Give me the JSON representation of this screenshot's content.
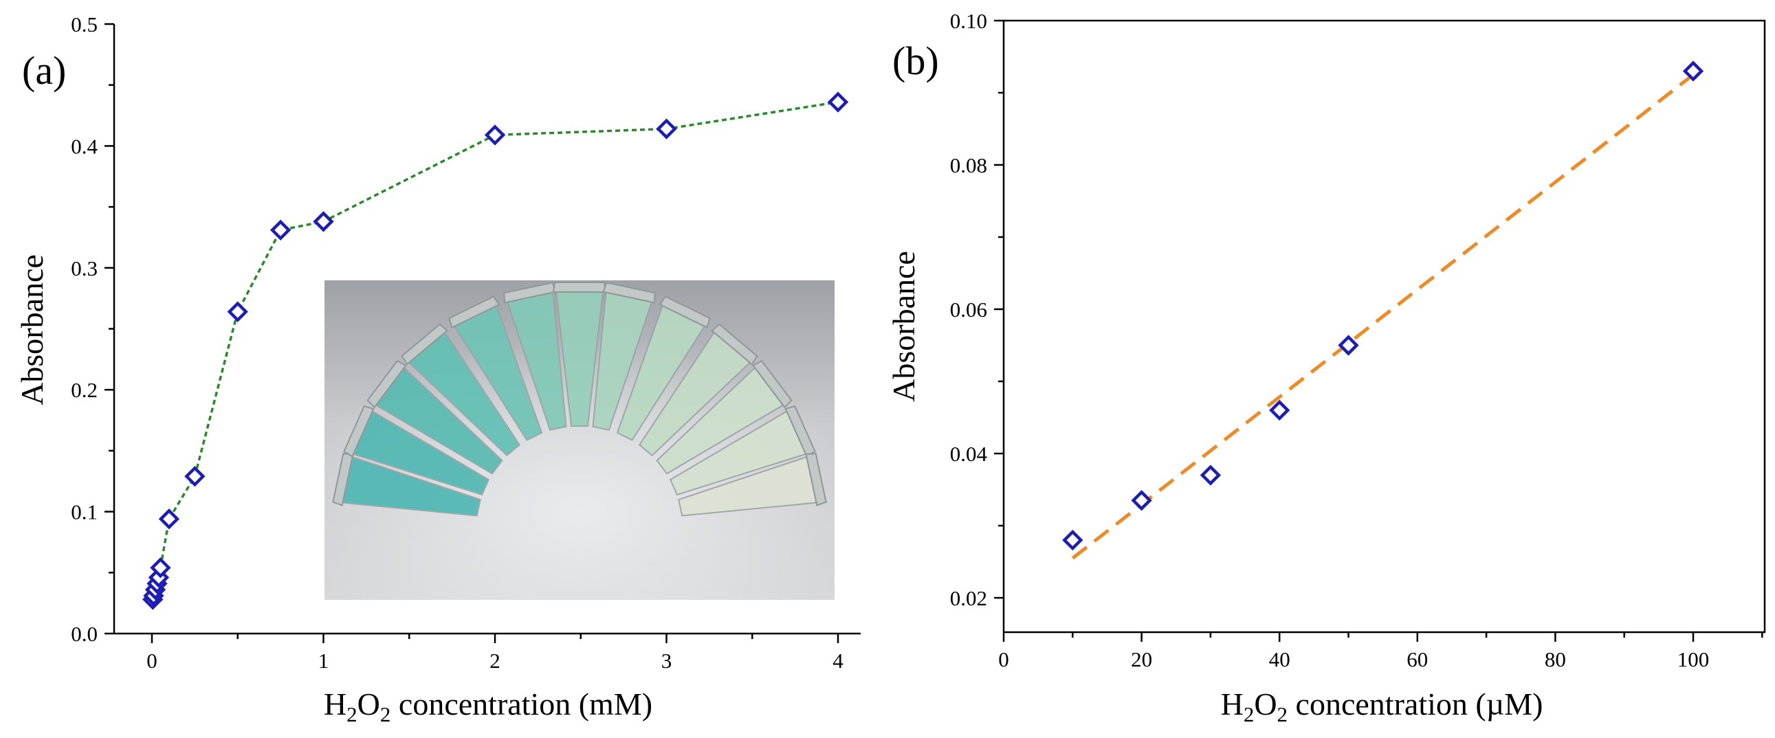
{
  "chart_data": [
    {
      "type": "line",
      "panel_label": "(a)",
      "title": "",
      "xlabel": {
        "pre": "H",
        "sub1": "2",
        "mid": "O",
        "sub2": "2",
        "post": " concentration (mM)"
      },
      "ylabel": "Absorbance",
      "xlim": [
        -0.2,
        4.1
      ],
      "ylim": [
        0.0,
        0.5
      ],
      "xticks": [
        0,
        1,
        2,
        3,
        4
      ],
      "xtick_labels": [
        "0",
        "1",
        "2",
        "3",
        "4"
      ],
      "yticks": [
        0.0,
        0.1,
        0.2,
        0.3,
        0.4,
        0.5
      ],
      "ytick_labels": [
        "0.0",
        "0.1",
        "0.2",
        "0.3",
        "0.4",
        "0.5"
      ],
      "grid": false,
      "series": [
        {
          "name": "Absorbance",
          "marker": "diamond",
          "marker_color": "#1c1cb8",
          "line_style": "dotted",
          "line_color": "#2a8a2a",
          "x": [
            0.005,
            0.01,
            0.02,
            0.03,
            0.04,
            0.05,
            0.1,
            0.25,
            0.5,
            0.75,
            1.0,
            2.0,
            3.0,
            4.0
          ],
          "y": [
            0.028,
            0.031,
            0.036,
            0.041,
            0.046,
            0.054,
            0.094,
            0.129,
            0.264,
            0.331,
            0.338,
            0.409,
            0.414,
            0.436
          ]
        }
      ],
      "inset": {
        "description": "photo of colored tubes"
      }
    },
    {
      "type": "scatter",
      "panel_label": "(b)",
      "title": "",
      "xlabel": {
        "pre": "H",
        "sub1": "2",
        "mid": "O",
        "sub2": "2",
        "post": " concentration (µM)"
      },
      "ylabel": "Absorbance",
      "xlim": [
        0,
        110
      ],
      "ylim": [
        0.015,
        0.1
      ],
      "xticks": [
        0,
        20,
        40,
        60,
        80,
        100
      ],
      "xtick_labels": [
        "0",
        "20",
        "40",
        "60",
        "80",
        "100"
      ],
      "yticks": [
        0.02,
        0.04,
        0.06,
        0.08,
        0.1
      ],
      "ytick_labels": [
        "0.02",
        "0.04",
        "0.06",
        "0.08",
        "0.10"
      ],
      "grid": false,
      "series": [
        {
          "name": "Absorbance",
          "marker": "diamond",
          "marker_color": "#1c1cb8",
          "x": [
            10,
            20,
            30,
            40,
            50,
            100
          ],
          "y": [
            0.028,
            0.0335,
            0.037,
            0.046,
            0.055,
            0.093
          ]
        }
      ],
      "fit_line": {
        "x": [
          10,
          100
        ],
        "y": [
          0.0255,
          0.0925
        ],
        "color": "#f08a24",
        "line_style": "dashed"
      }
    }
  ]
}
